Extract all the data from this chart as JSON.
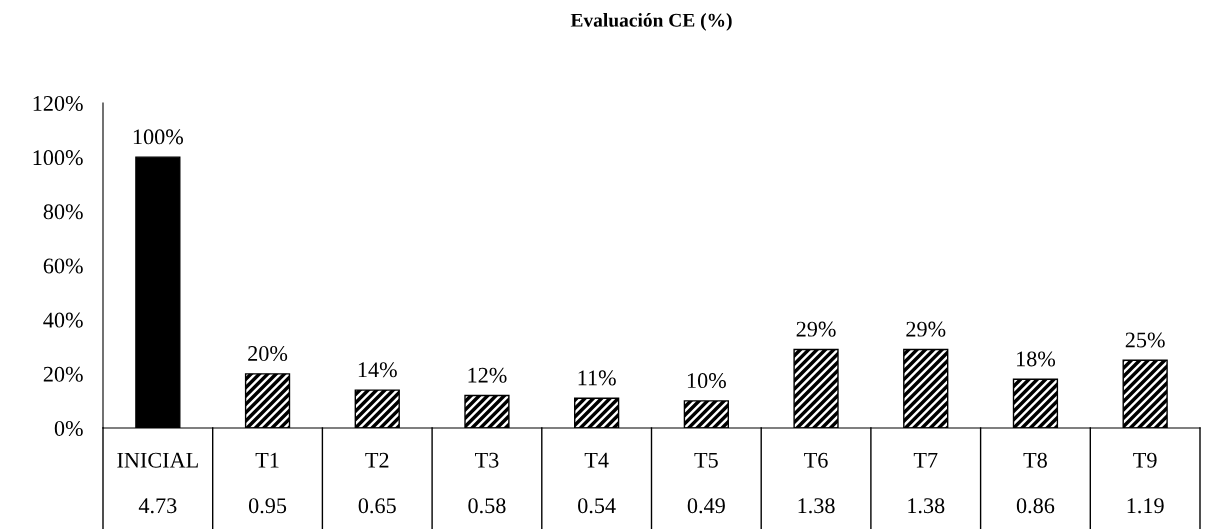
{
  "chart_data": {
    "type": "bar",
    "title": "Evaluación CE (%)",
    "categories": [
      "INICIAL",
      "T1",
      "T2",
      "T3",
      "T4",
      "T5",
      "T6",
      "T7",
      "T8",
      "T9"
    ],
    "values": [
      100,
      20,
      14,
      12,
      11,
      10,
      29,
      29,
      18,
      25
    ],
    "colors": [
      "#000000",
      "#000000",
      "#000000",
      "#000000",
      "#000000",
      "#000000",
      "#000000",
      "#000000",
      "#000000",
      "#000000"
    ],
    "value_labels": [
      "100%",
      "20%",
      "14%",
      "12%",
      "11%",
      "10%",
      "29%",
      "29%",
      "18%",
      "25%"
    ],
    "annotations": [
      "4.73",
      "0.95",
      "0.65",
      "0.58",
      "0.54",
      "0.49",
      "1.38",
      "1.38",
      "0.86",
      "1.19"
    ],
    "ylim": [
      0,
      120
    ],
    "yticks": [
      {
        "value": 0,
        "label": "0%"
      },
      {
        "value": 20,
        "label": "20%"
      },
      {
        "value": 40,
        "label": "40%"
      },
      {
        "value": 60,
        "label": "60%"
      },
      {
        "value": 80,
        "label": "80%"
      },
      {
        "value": 100,
        "label": "100%"
      },
      {
        "value": 120,
        "label": "120%"
      }
    ],
    "grid": false
  }
}
